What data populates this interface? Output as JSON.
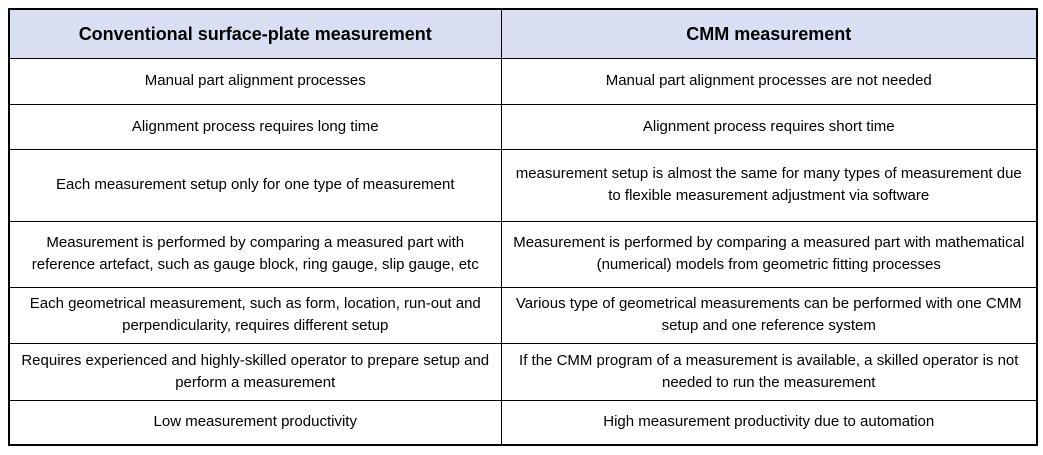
{
  "table": {
    "columns": [
      "Conventional surface-plate measurement",
      "CMM measurement"
    ],
    "rows": [
      {
        "conventional": "Manual part alignment processes",
        "cmm": "Manual part alignment processes are not needed"
      },
      {
        "conventional": "Alignment process requires long time",
        "cmm": "Alignment process requires short time"
      },
      {
        "conventional": "Each measurement setup only for one type of measurement",
        "cmm": "measurement setup is almost the same for many types of measurement due to flexible measurement adjustment via software"
      },
      {
        "conventional": "Measurement is performed by comparing a measured part with reference artefact, such as gauge block, ring gauge, slip gauge, etc",
        "cmm": "Measurement is performed by comparing a measured part with mathematical (numerical) models from geometric fitting processes"
      },
      {
        "conventional": "Each geometrical measurement, such as form, location, run-out and perpendicularity, requires different setup",
        "cmm": "Various type of geometrical measurements can be performed with one CMM setup and one reference system"
      },
      {
        "conventional": "Requires experienced and highly-skilled operator to prepare setup and perform a measurement",
        "cmm": "If the CMM program of a measurement is available, a skilled operator is not needed to run the measurement"
      },
      {
        "conventional": "Low measurement productivity",
        "cmm": "High measurement productivity due to automation"
      }
    ],
    "colors": {
      "header_bg": "#d9dff2",
      "border": "#000000",
      "text": "#000000",
      "page_bg": "#ffffff"
    }
  }
}
